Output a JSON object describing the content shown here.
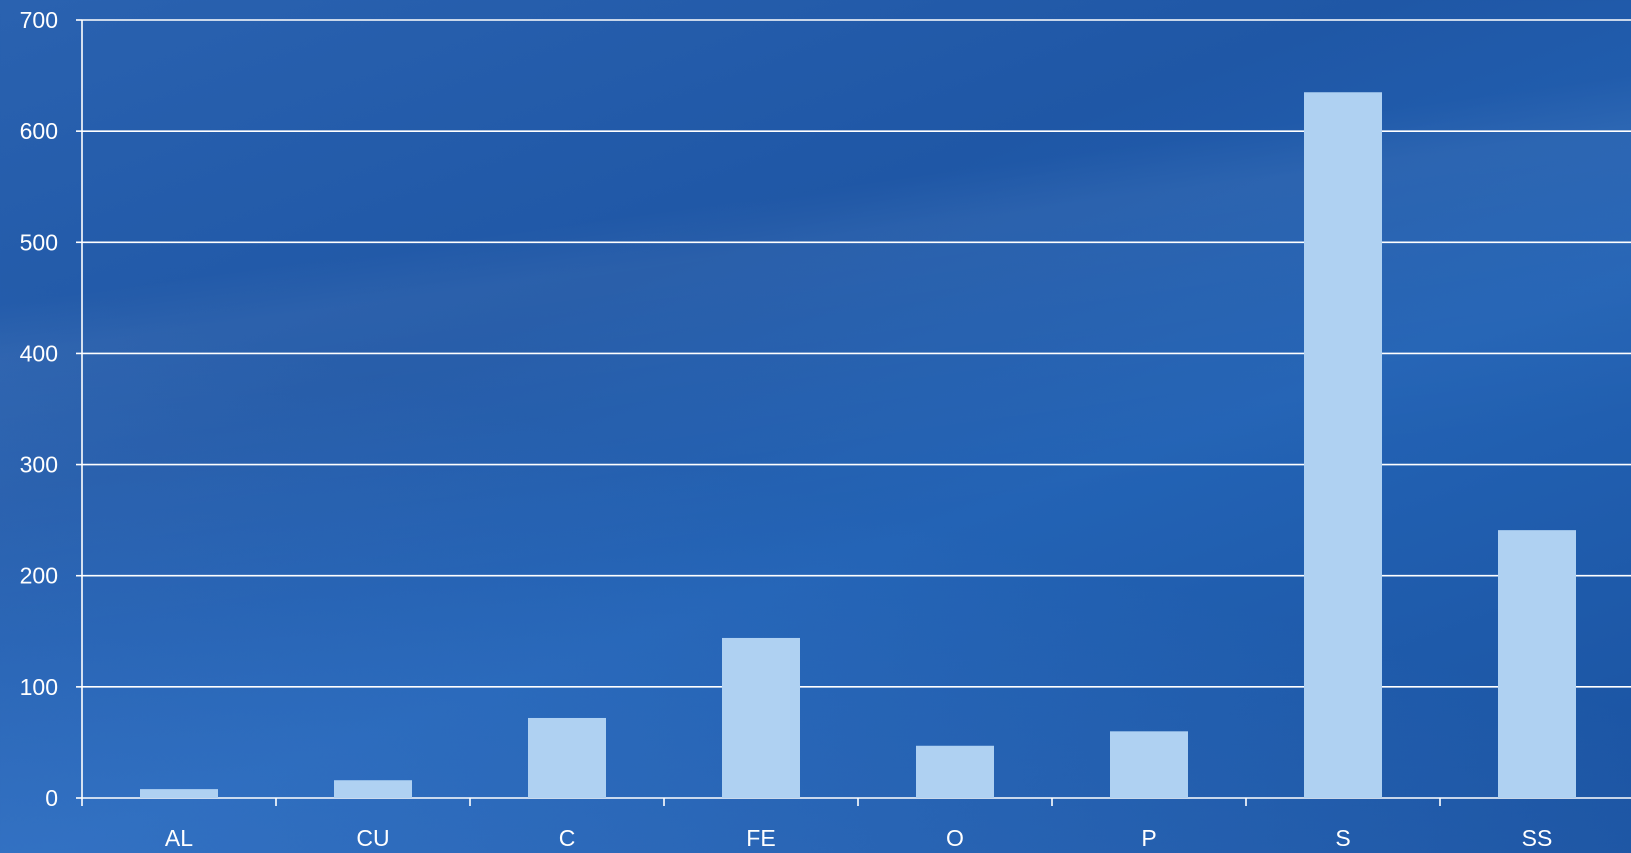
{
  "chart_data": {
    "type": "bar",
    "categories": [
      "AL",
      "CU",
      "C",
      "FE",
      "O",
      "P",
      "S",
      "SS"
    ],
    "values": [
      8,
      16,
      72,
      144,
      47,
      60,
      635,
      241
    ],
    "title": "",
    "xlabel": "",
    "ylabel": "",
    "ylim": [
      0,
      700
    ],
    "yticks": [
      0,
      100,
      200,
      300,
      400,
      500,
      600,
      700
    ],
    "grid": true,
    "legend": "none"
  },
  "colors": {
    "bar": "#afd1f2",
    "gridline": "#ffffff",
    "text": "#ffffff",
    "background": "#1f57a6"
  }
}
